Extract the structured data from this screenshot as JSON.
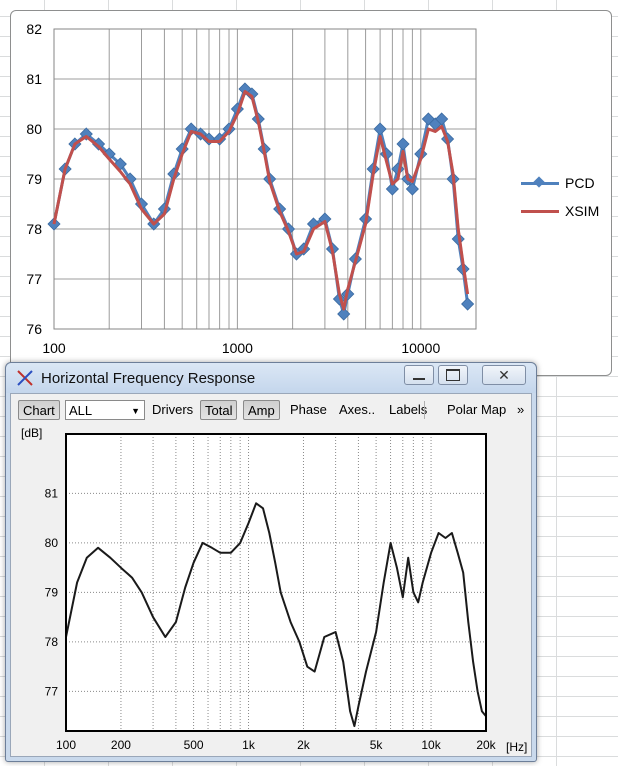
{
  "excel_chart": {
    "legend": [
      {
        "name": "PCD",
        "color": "#4f81bd",
        "marker": "diamond"
      },
      {
        "name": "XSIM",
        "color": "#c0504d",
        "marker": "none"
      }
    ]
  },
  "chart_data": [
    {
      "type": "line",
      "title": "",
      "xlabel": "",
      "ylabel": "",
      "x_scale": "log",
      "xlim": [
        100,
        20000
      ],
      "ylim": [
        76,
        82
      ],
      "x_tick_labels": [
        "100",
        "1000",
        "10000"
      ],
      "y_tick_labels": [
        "82",
        "81",
        "80",
        "79",
        "78",
        "77",
        "76"
      ],
      "grid": true,
      "legend_position": "right",
      "x": [
        100,
        115,
        130,
        150,
        175,
        200,
        230,
        260,
        300,
        350,
        400,
        450,
        500,
        560,
        630,
        700,
        800,
        900,
        1000,
        1100,
        1200,
        1300,
        1400,
        1500,
        1700,
        1900,
        2100,
        2300,
        2600,
        3000,
        3300,
        3600,
        3800,
        4000,
        4400,
        5000,
        5500,
        6000,
        6500,
        7000,
        7500,
        8000,
        8500,
        9000,
        10000,
        11000,
        12000,
        13000,
        14000,
        15000,
        16000,
        17000,
        18000
      ],
      "series": [
        {
          "name": "PCD",
          "values": [
            78.1,
            79.2,
            79.7,
            79.9,
            79.7,
            79.5,
            79.3,
            79.0,
            78.5,
            78.1,
            78.4,
            79.1,
            79.6,
            80.0,
            79.9,
            79.8,
            79.8,
            80.0,
            80.4,
            80.8,
            80.7,
            80.2,
            79.6,
            79.0,
            78.4,
            78.0,
            77.5,
            77.6,
            78.1,
            78.2,
            77.6,
            76.6,
            76.3,
            76.7,
            77.4,
            78.2,
            79.2,
            80.0,
            79.5,
            78.8,
            79.2,
            79.7,
            79.0,
            78.8,
            79.5,
            80.2,
            80.1,
            80.2,
            79.8,
            79.0,
            77.8,
            77.2,
            76.5
          ]
        },
        {
          "name": "XSIM",
          "values": [
            78.1,
            79.2,
            79.7,
            79.85,
            79.65,
            79.4,
            79.15,
            78.9,
            78.4,
            78.1,
            78.3,
            79.0,
            79.5,
            79.95,
            79.9,
            79.75,
            79.75,
            79.95,
            80.3,
            80.75,
            80.65,
            80.15,
            79.55,
            78.95,
            78.35,
            77.95,
            77.5,
            77.55,
            78.0,
            78.15,
            77.55,
            76.7,
            76.4,
            76.8,
            77.35,
            78.1,
            79.1,
            79.85,
            79.35,
            78.9,
            79.0,
            79.55,
            79.0,
            78.95,
            79.4,
            80.0,
            79.95,
            80.05,
            79.75,
            79.1,
            78.0,
            77.3,
            76.7
          ]
        }
      ]
    },
    {
      "type": "line",
      "title": "",
      "xlabel": "[Hz]",
      "ylabel": "[dB]",
      "x_scale": "log",
      "xlim": [
        100,
        20000
      ],
      "ylim": [
        76.2,
        82.2
      ],
      "x_tick_labels": [
        "100",
        "200",
        "500",
        "1k",
        "2k",
        "5k",
        "10k",
        "20k"
      ],
      "y_tick_labels": [
        "81",
        "80",
        "79",
        "78",
        "77"
      ],
      "grid": true,
      "x": [
        100,
        115,
        130,
        150,
        175,
        200,
        230,
        260,
        300,
        350,
        400,
        450,
        500,
        560,
        630,
        700,
        800,
        900,
        1000,
        1100,
        1200,
        1300,
        1400,
        1500,
        1700,
        1900,
        2100,
        2300,
        2600,
        3000,
        3300,
        3600,
        3800,
        4000,
        4400,
        5000,
        5500,
        6000,
        6500,
        7000,
        7500,
        8000,
        8500,
        9000,
        10000,
        11000,
        12000,
        13000,
        14000,
        15000,
        16000,
        17000,
        18000,
        19000,
        20000
      ],
      "series": [
        {
          "name": "",
          "values": [
            78.1,
            79.2,
            79.7,
            79.9,
            79.7,
            79.5,
            79.3,
            79.0,
            78.5,
            78.1,
            78.4,
            79.1,
            79.6,
            80.0,
            79.9,
            79.8,
            79.8,
            80.0,
            80.4,
            80.8,
            80.7,
            80.2,
            79.6,
            79.0,
            78.4,
            78.0,
            77.5,
            77.4,
            78.1,
            78.2,
            77.6,
            76.6,
            76.3,
            76.7,
            77.4,
            78.2,
            79.2,
            80.0,
            79.5,
            78.9,
            79.7,
            79.0,
            78.8,
            79.2,
            79.8,
            80.2,
            80.1,
            80.2,
            79.8,
            79.4,
            78.4,
            77.6,
            77.0,
            76.6,
            76.5
          ]
        }
      ]
    }
  ],
  "xsim_window": {
    "title": "Horizontal Frequency Response",
    "toolbar": {
      "chart": "Chart",
      "chart_select": "ALL",
      "drivers": "Drivers",
      "total": "Total",
      "amp": "Amp",
      "phase": "Phase",
      "axes": "Axes..",
      "labels": "Labels",
      "polar_map": "Polar Map",
      "more": "»"
    }
  }
}
